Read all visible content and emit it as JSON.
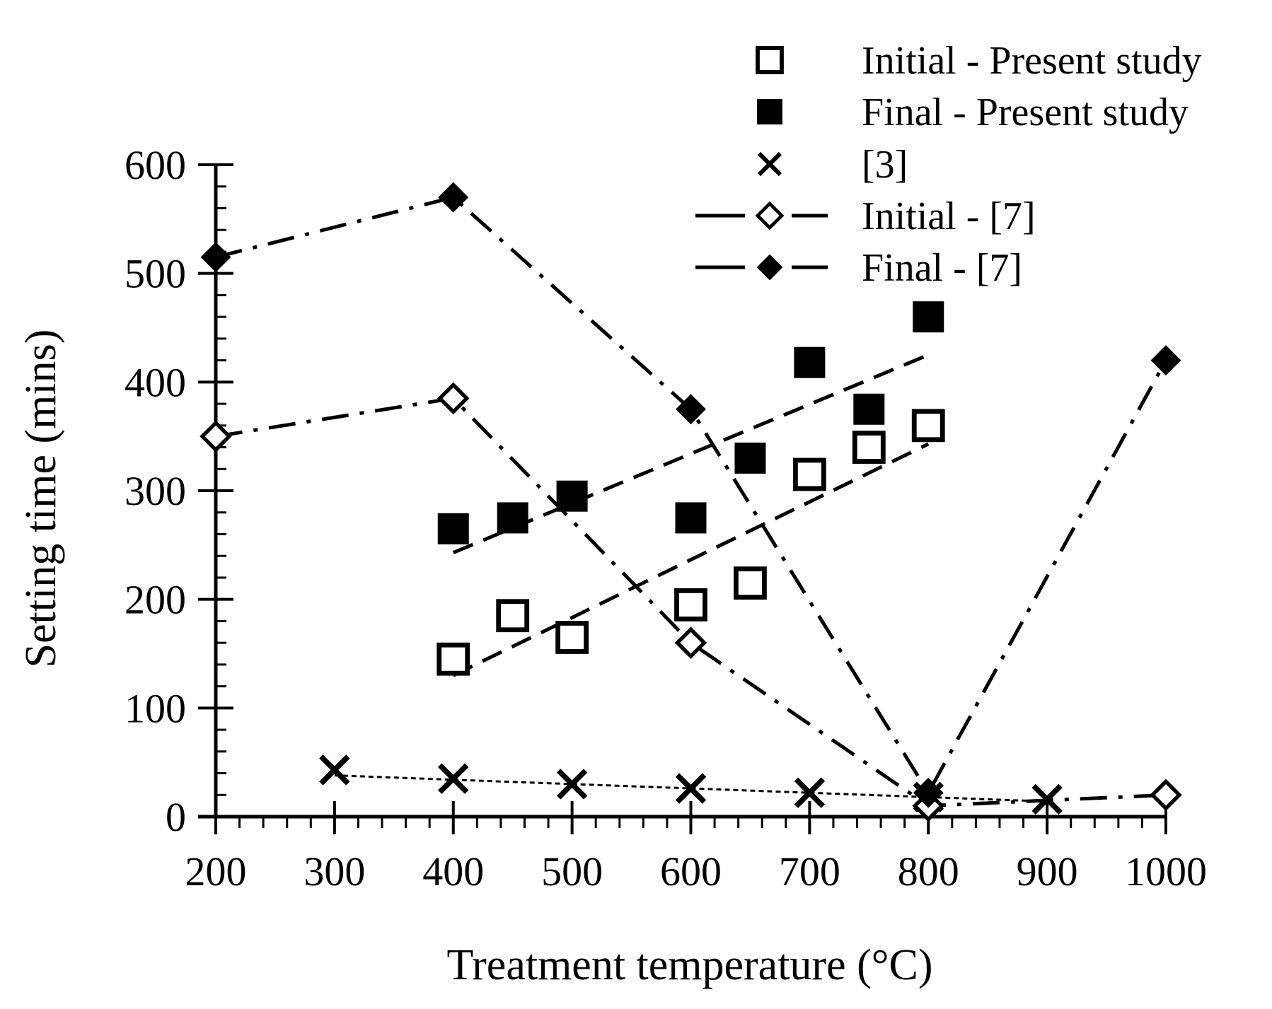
{
  "chart_data": {
    "type": "scatter",
    "title": "",
    "xlabel": "Treatment temperature (°C)",
    "ylabel": "Setting time (mins)",
    "xlim": [
      200,
      1000
    ],
    "ylim": [
      0,
      600
    ],
    "xticks": [
      200,
      300,
      400,
      500,
      600,
      700,
      800,
      900,
      1000
    ],
    "yticks": [
      0,
      100,
      200,
      300,
      400,
      500,
      600
    ],
    "xtick_labels": [
      "200",
      "300",
      "400",
      "500",
      "600",
      "700",
      "800",
      "900",
      "1000"
    ],
    "ytick_labels": [
      "0",
      "100",
      "200",
      "300",
      "400",
      "500",
      "600"
    ],
    "grid": false,
    "legend_position": "top-right",
    "series": [
      {
        "name": "Initial - Present study",
        "marker": "open-square",
        "x": [
          400,
          450,
          500,
          600,
          650,
          700,
          750,
          800
        ],
        "y": [
          145,
          185,
          165,
          195,
          215,
          315,
          340,
          360
        ],
        "trendline": {
          "style": "dashed",
          "x": [
            400,
            800
          ],
          "y": [
            130,
            343
          ]
        }
      },
      {
        "name": "Final - Present study",
        "marker": "filled-square",
        "x": [
          400,
          450,
          500,
          600,
          650,
          700,
          750,
          800
        ],
        "y": [
          265,
          275,
          295,
          275,
          330,
          418,
          375,
          460
        ],
        "trendline": {
          "style": "dashed",
          "x": [
            400,
            800
          ],
          "y": [
            243,
            425
          ]
        }
      },
      {
        "name": "[3]",
        "marker": "x",
        "x": [
          300,
          400,
          500,
          600,
          700,
          800,
          900
        ],
        "y": [
          43,
          35,
          30,
          26,
          22,
          18,
          16
        ],
        "trendline": {
          "style": "dotted",
          "x": [
            300,
            900
          ],
          "y": [
            38,
            14
          ]
        }
      },
      {
        "name": "Initial - [7]",
        "marker": "open-diamond",
        "line": "dash-dot",
        "x": [
          200,
          400,
          600,
          800,
          1000
        ],
        "y": [
          350,
          385,
          160,
          10,
          20
        ]
      },
      {
        "name": "Final - [7]",
        "marker": "filled-diamond",
        "line": "dash-dot",
        "x": [
          200,
          400,
          600,
          800,
          1000
        ],
        "y": [
          515,
          570,
          375,
          22,
          420
        ]
      }
    ]
  }
}
